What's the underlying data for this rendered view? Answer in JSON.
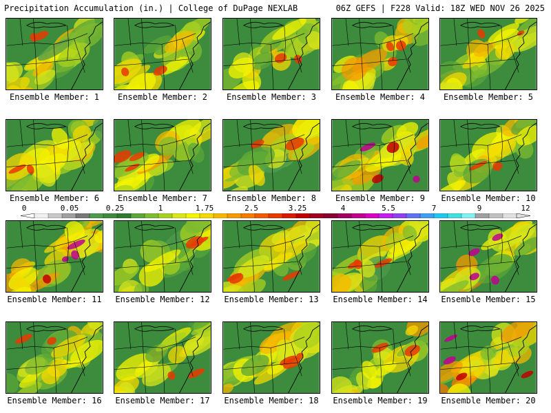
{
  "header": {
    "title": "Precipitation Accumulation (in.) | College of DuPage NEXLAB",
    "run_info": "06Z GEFS | F228 Valid: 18Z WED NOV 26 2025"
  },
  "panels": [
    {
      "label": "Ensemble Member: 1",
      "seed": 11,
      "intensity": 0.45
    },
    {
      "label": "Ensemble Member: 2",
      "seed": 22,
      "intensity": 0.4
    },
    {
      "label": "Ensemble Member: 3",
      "seed": 33,
      "intensity": 0.4
    },
    {
      "label": "Ensemble Member: 4",
      "seed": 44,
      "intensity": 0.55
    },
    {
      "label": "Ensemble Member: 5",
      "seed": 55,
      "intensity": 0.35
    },
    {
      "label": "Ensemble Member: 6",
      "seed": 66,
      "intensity": 0.45
    },
    {
      "label": "Ensemble Member: 7",
      "seed": 77,
      "intensity": 0.55
    },
    {
      "label": "Ensemble Member: 8",
      "seed": 88,
      "intensity": 0.45
    },
    {
      "label": "Ensemble Member: 9",
      "seed": 99,
      "intensity": 0.7
    },
    {
      "label": "Ensemble Member: 10",
      "seed": 110,
      "intensity": 0.4
    },
    {
      "label": "Ensemble Member: 11",
      "seed": 121,
      "intensity": 0.8
    },
    {
      "label": "Ensemble Member: 12",
      "seed": 132,
      "intensity": 0.4
    },
    {
      "label": "Ensemble Member: 13",
      "seed": 143,
      "intensity": 0.55
    },
    {
      "label": "Ensemble Member: 14",
      "seed": 154,
      "intensity": 0.5
    },
    {
      "label": "Ensemble Member: 15",
      "seed": 165,
      "intensity": 0.75
    },
    {
      "label": "Ensemble Member: 16",
      "seed": 176,
      "intensity": 0.45
    },
    {
      "label": "Ensemble Member: 17",
      "seed": 187,
      "intensity": 0.4
    },
    {
      "label": "Ensemble Member: 18",
      "seed": 198,
      "intensity": 0.55
    },
    {
      "label": "Ensemble Member: 19",
      "seed": 209,
      "intensity": 0.45
    },
    {
      "label": "Ensemble Member: 20",
      "seed": 220,
      "intensity": 0.75
    }
  ],
  "colorbar": {
    "tick_labels": [
      "0",
      "0.05",
      "0.25",
      "1",
      "1.75",
      "2.5",
      "3.25",
      "4",
      "5.5",
      "7",
      "9",
      "12"
    ],
    "colors": [
      "#f0f0f0",
      "#c8c8c8",
      "#a0a0a0",
      "#787878",
      "#4e9a4e",
      "#3d8b3d",
      "#2f7a2f",
      "#5aa63a",
      "#7dbb30",
      "#a8d020",
      "#d8e61a",
      "#f4f400",
      "#f4d800",
      "#f4b800",
      "#f49a00",
      "#f47a00",
      "#f25a00",
      "#e83a00",
      "#d81a00",
      "#c00000",
      "#a00020",
      "#880030",
      "#a00060",
      "#c00090",
      "#d800c0",
      "#c020f0",
      "#9040f0",
      "#6070f0",
      "#40a0f0",
      "#20c8f0",
      "#40e0e0",
      "#80f0f0",
      "#a0a0a0",
      "#c0c0c0",
      "#e0e0e0"
    ]
  }
}
